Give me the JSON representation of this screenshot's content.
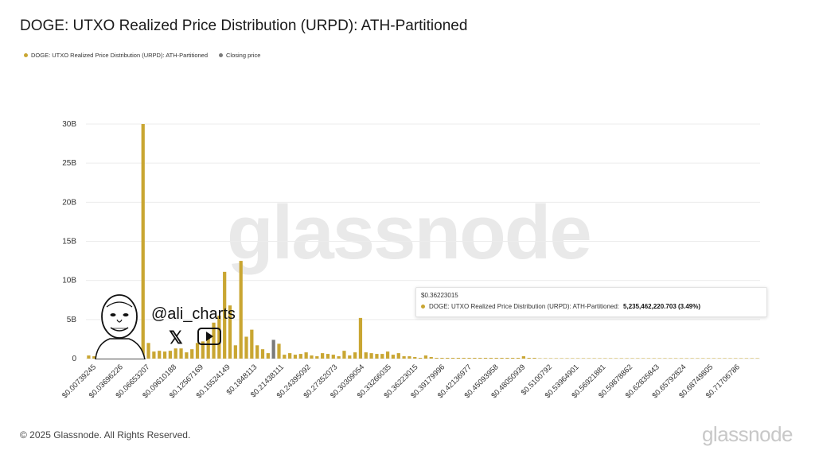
{
  "title": "DOGE: UTXO Realized Price Distribution (URPD): ATH-Partitioned",
  "legend": [
    {
      "label": "DOGE: UTXO Realized Price Distribution (URPD): ATH-Partitioned",
      "color": "#c9a632"
    },
    {
      "label": "Closing price",
      "color": "#7a7a7a"
    }
  ],
  "watermark": "glassnode",
  "footer": {
    "copyright": "© 2025 Glassnode. All Rights Reserved.",
    "logo": "glassnode"
  },
  "tooltip": {
    "header": "$0.36223015",
    "series": "DOGE: UTXO Realized Price Distribution (URPD): ATH-Partitioned:",
    "value": "5,235,462,220.703 (3.49%)"
  },
  "social": {
    "handle": "@ali_charts",
    "x_icon": "x-logo-icon",
    "yt_icon": "youtube-icon"
  },
  "chart_data": {
    "type": "bar",
    "title": "DOGE: UTXO Realized Price Distribution (URPD): ATH-Partitioned",
    "ylim": [
      0,
      30000000000
    ],
    "yticks": [
      {
        "v": 0,
        "label": "0"
      },
      {
        "v": 5000000000,
        "label": "5B"
      },
      {
        "v": 10000000000,
        "label": "10B"
      },
      {
        "v": 15000000000,
        "label": "15B"
      },
      {
        "v": 20000000000,
        "label": "20B"
      },
      {
        "v": 25000000000,
        "label": "25B"
      },
      {
        "v": 30000000000,
        "label": "30B"
      }
    ],
    "xtick_labels": [
      "$0.00739245",
      "$0.03696226",
      "$0.06653207",
      "$0.09610188",
      "$0.12567169",
      "$0.15524149",
      "$0.1848113",
      "$0.21438111",
      "$0.24395092",
      "$0.27352073",
      "$0.30309054",
      "$0.33266035",
      "$0.36223015",
      "$0.39179996",
      "$0.42136977",
      "$0.45093958",
      "$0.48050939",
      "$0.5100792",
      "$0.53964901",
      "$0.56921881",
      "$0.59878862",
      "$0.62835843",
      "$0.65792824",
      "$0.68749805",
      "$0.71706786"
    ],
    "grid": true,
    "closing_price_index": 34,
    "highlight_label": "$0.36223015",
    "values": [
      0.4,
      0.3,
      0.2,
      0.1,
      0.2,
      0.5,
      0.4,
      0.6,
      0.9,
      1.0,
      30.0,
      2.0,
      0.9,
      1.0,
      0.9,
      1.0,
      1.3,
      1.3,
      0.8,
      1.2,
      2.0,
      2.2,
      2.6,
      4.6,
      5.5,
      11.1,
      6.8,
      1.7,
      12.5,
      2.8,
      3.7,
      1.7,
      1.2,
      0.7,
      2.4,
      1.9,
      0.5,
      0.7,
      0.5,
      0.6,
      0.8,
      0.4,
      0.3,
      0.7,
      0.6,
      0.5,
      0.3,
      1.0,
      0.4,
      0.8,
      5.2,
      0.8,
      0.7,
      0.6,
      0.6,
      0.9,
      0.5,
      0.7,
      0.3,
      0.3,
      0.2,
      0.1,
      0.4,
      0.2,
      0.1,
      0.1,
      0.1,
      0.1,
      0.1,
      0.1,
      0.1,
      0.1,
      0.1,
      0.1,
      0.1,
      0.1,
      0.1,
      0.1,
      0.1,
      0.1,
      0.3,
      0.1,
      0.1,
      0.05,
      0.05,
      0.05,
      0.05,
      0.05,
      0.05,
      0.05,
      0.05,
      0.05,
      0.05,
      0.05,
      0.05,
      0.05,
      0.05,
      0.05,
      0.05,
      0.05,
      0.05,
      0.05,
      0.05,
      0.05,
      0.05,
      0.05,
      0.05,
      0.05,
      0.05,
      0.05,
      0.05,
      0.05,
      0.05,
      0.05,
      0.05,
      0.05,
      0.05,
      0.05,
      0.05,
      0.05,
      0.05,
      0.05,
      0.05,
      0.05
    ],
    "values_unit": "billions",
    "bar_color": "#c9a632",
    "closing_color": "#7a7a7a"
  }
}
